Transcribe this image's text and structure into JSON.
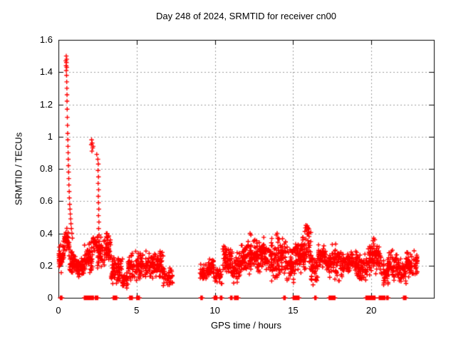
{
  "figure": {
    "background": "#ffffff"
  },
  "chart_data": {
    "type": "scatter",
    "title": "Day 248 of 2024, SRMTID for receiver cn00",
    "xlabel": "GPS time / hours",
    "ylabel": "SRMTID / TECUs",
    "xlim": [
      0,
      24
    ],
    "ylim": [
      0,
      1.6
    ],
    "xticks": [
      0,
      5,
      10,
      15,
      20
    ],
    "xtick_labels": [
      "0",
      "5",
      "10",
      "15",
      "20"
    ],
    "yticks": [
      0,
      0.2,
      0.4,
      0.6,
      0.8,
      1,
      1.2,
      1.4,
      1.6
    ],
    "ytick_labels": [
      "0",
      "0.2",
      "0.4",
      "0.6",
      "0.8",
      "1",
      "1.2",
      "1.4",
      "1.6"
    ],
    "grid": {
      "show": true,
      "color": "#9c9c9c",
      "dash": [
        2,
        3
      ]
    },
    "legend": "none",
    "axis_color": "#000000",
    "marker": {
      "shape": "plus",
      "color": "#ff0000",
      "size": 7,
      "stroke": 1.4
    },
    "series_name": "SRMTID",
    "spike_points": [
      [
        0.5,
        1.5
      ],
      [
        0.53,
        1.48
      ],
      [
        0.47,
        1.47
      ],
      [
        0.51,
        1.46
      ],
      [
        0.49,
        1.44
      ],
      [
        0.53,
        1.43
      ],
      [
        0.5,
        1.41
      ],
      [
        0.52,
        1.38
      ],
      [
        0.53,
        1.34
      ],
      [
        0.54,
        1.3
      ],
      [
        0.55,
        1.26
      ],
      [
        0.55,
        1.22
      ],
      [
        0.56,
        1.17
      ],
      [
        0.57,
        1.12
      ],
      [
        0.58,
        1.07
      ],
      [
        0.59,
        1.02
      ],
      [
        0.6,
        0.98
      ],
      [
        0.61,
        0.94
      ],
      [
        0.62,
        0.9
      ],
      [
        0.63,
        0.86
      ],
      [
        0.64,
        0.82
      ],
      [
        0.65,
        0.78
      ],
      [
        0.66,
        0.74
      ],
      [
        0.67,
        0.7
      ],
      [
        0.69,
        0.66
      ],
      [
        0.7,
        0.62
      ],
      [
        0.72,
        0.58
      ],
      [
        0.74,
        0.55
      ],
      [
        0.76,
        0.52
      ],
      [
        0.78,
        0.49
      ],
      [
        0.8,
        0.46
      ],
      [
        0.83,
        0.43
      ],
      [
        0.86,
        0.4
      ],
      [
        0.89,
        0.37
      ],
      [
        2.12,
        0.98
      ],
      [
        2.16,
        0.96
      ],
      [
        2.1,
        0.95
      ],
      [
        2.19,
        0.93
      ],
      [
        2.14,
        0.91
      ],
      [
        2.22,
        0.94
      ],
      [
        2.45,
        0.89
      ],
      [
        2.52,
        0.86
      ],
      [
        2.55,
        0.83
      ],
      [
        2.53,
        0.79
      ],
      [
        2.56,
        0.75
      ],
      [
        2.54,
        0.71
      ],
      [
        2.57,
        0.67
      ],
      [
        2.55,
        0.63
      ],
      [
        2.56,
        0.59
      ],
      [
        2.58,
        0.55
      ],
      [
        2.56,
        0.51
      ],
      [
        2.59,
        0.47
      ],
      [
        2.57,
        0.43
      ],
      [
        2.6,
        0.39
      ],
      [
        2.62,
        0.35
      ],
      [
        2.64,
        0.31
      ],
      [
        15.82,
        0.45
      ],
      [
        15.88,
        0.44
      ],
      [
        15.93,
        0.43
      ],
      [
        15.86,
        0.42
      ],
      [
        15.98,
        0.41
      ],
      [
        16.02,
        0.4
      ],
      [
        12.25,
        0.4
      ],
      [
        12.3,
        0.39
      ],
      [
        13.98,
        0.4
      ],
      [
        13.93,
        0.39
      ],
      [
        20.15,
        0.37
      ],
      [
        20.22,
        0.36
      ]
    ],
    "band_segments_format": "[x_start_hours, x_end_hours, y_min_tecus, y_max_tecus, n_points]",
    "band_segments": [
      [
        0.03,
        0.35,
        0.14,
        0.36,
        40
      ],
      [
        0.3,
        0.7,
        0.25,
        0.45,
        45
      ],
      [
        0.7,
        1.1,
        0.13,
        0.3,
        45
      ],
      [
        1.1,
        1.65,
        0.12,
        0.26,
        60
      ],
      [
        1.65,
        2.2,
        0.15,
        0.35,
        60
      ],
      [
        2.2,
        2.5,
        0.28,
        0.4,
        28
      ],
      [
        2.5,
        2.95,
        0.18,
        0.38,
        50
      ],
      [
        2.95,
        3.35,
        0.2,
        0.42,
        45
      ],
      [
        3.35,
        4.1,
        0.08,
        0.28,
        75
      ],
      [
        4.1,
        4.45,
        0.04,
        0.18,
        32
      ],
      [
        4.45,
        5.3,
        0.1,
        0.3,
        80
      ],
      [
        5.3,
        6.7,
        0.1,
        0.3,
        130
      ],
      [
        6.7,
        7.3,
        0.06,
        0.2,
        40
      ],
      [
        9.05,
        9.55,
        0.1,
        0.22,
        35
      ],
      [
        9.55,
        9.95,
        0.12,
        0.25,
        38
      ],
      [
        10.0,
        10.45,
        0.06,
        0.2,
        32
      ],
      [
        10.5,
        11.1,
        0.14,
        0.34,
        60
      ],
      [
        11.1,
        11.65,
        0.08,
        0.3,
        55
      ],
      [
        11.65,
        12.1,
        0.15,
        0.35,
        50
      ],
      [
        12.1,
        12.75,
        0.14,
        0.4,
        70
      ],
      [
        12.75,
        13.45,
        0.12,
        0.39,
        70
      ],
      [
        13.45,
        14.15,
        0.1,
        0.4,
        70
      ],
      [
        14.15,
        14.55,
        0.12,
        0.38,
        40
      ],
      [
        14.55,
        15.1,
        0.08,
        0.35,
        55
      ],
      [
        15.1,
        15.55,
        0.12,
        0.38,
        45
      ],
      [
        15.55,
        16.15,
        0.15,
        0.46,
        60
      ],
      [
        16.15,
        16.6,
        0.06,
        0.3,
        45
      ],
      [
        16.6,
        17.1,
        0.15,
        0.35,
        50
      ],
      [
        17.1,
        17.45,
        0.12,
        0.3,
        35
      ],
      [
        17.45,
        18.15,
        0.1,
        0.35,
        65
      ],
      [
        18.15,
        19.1,
        0.13,
        0.3,
        85
      ],
      [
        19.1,
        19.8,
        0.1,
        0.28,
        65
      ],
      [
        19.8,
        20.65,
        0.13,
        0.36,
        85
      ],
      [
        20.65,
        21.1,
        0.06,
        0.25,
        45
      ],
      [
        21.1,
        21.65,
        0.1,
        0.3,
        50
      ],
      [
        21.65,
        22.25,
        0.08,
        0.25,
        55
      ],
      [
        22.25,
        22.95,
        0.12,
        0.3,
        65
      ]
    ],
    "data_gap_hours": [
      7.3,
      9.05
    ],
    "zero_marker_x": [
      0.12,
      0.2,
      1.65,
      1.72,
      1.79,
      1.86,
      1.93,
      2.0,
      2.07,
      2.14,
      2.21,
      2.35,
      2.42,
      2.49,
      3.5,
      3.57,
      3.64,
      3.7,
      4.55,
      4.62,
      4.7,
      5.0,
      5.07,
      5.15,
      9.1,
      9.17,
      9.95,
      10.02,
      10.1,
      10.35,
      10.42,
      11.0,
      11.07,
      11.25,
      11.32,
      11.39,
      11.46,
      14.4,
      14.47,
      15.0,
      15.07,
      15.14,
      15.21,
      15.28,
      15.35,
      16.38,
      16.44,
      17.3,
      17.37,
      17.44,
      17.51,
      17.58,
      17.65,
      19.65,
      19.72,
      19.79,
      19.86,
      19.93,
      20.0,
      20.07,
      20.14,
      20.21,
      20.5,
      20.57,
      20.64,
      20.71,
      20.78,
      20.85,
      20.98,
      21.05,
      22.05,
      22.12,
      22.19
    ]
  }
}
